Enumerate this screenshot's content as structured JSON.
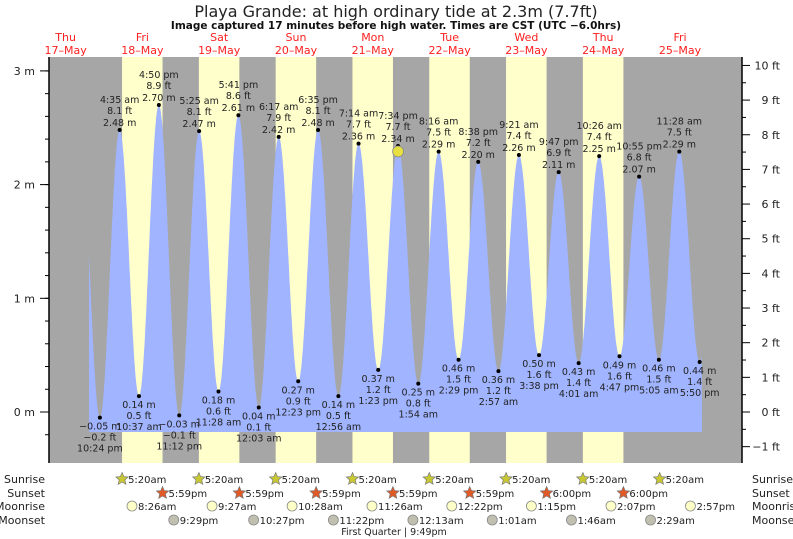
{
  "chart_data": {
    "type": "area",
    "title": "Playa Grande: at high  ordinary tide at 2.3m (7.7ft)",
    "subtitle": "Image captured 17 minutes before high water. Times are CST (UTC −6.0hrs)",
    "colors": {
      "night": "#a6a6a6",
      "day": "#ffffcc",
      "tide": "#a0b4ff",
      "day_label": "#ff2020",
      "sunrise": "#c8c832",
      "sunset": "#e05a28",
      "moonrise": "#ffffc8",
      "moonset": "#c0bfb0",
      "current": "#e8e040"
    },
    "days": [
      {
        "dow": "Thu",
        "date": "17–May",
        "day": 17
      },
      {
        "dow": "Fri",
        "date": "18–May",
        "day": 18
      },
      {
        "dow": "Sat",
        "date": "19–May",
        "day": 19
      },
      {
        "dow": "Sun",
        "date": "20–May",
        "day": 20
      },
      {
        "dow": "Mon",
        "date": "21–May",
        "day": 21
      },
      {
        "dow": "Tue",
        "date": "22–May",
        "day": 22
      },
      {
        "dow": "Wed",
        "date": "23–May",
        "day": 23
      },
      {
        "dow": "Thu",
        "date": "24–May",
        "day": 24
      },
      {
        "dow": "Fri",
        "date": "25–May",
        "day": 25
      }
    ],
    "y_left": {
      "unit": "m",
      "ticks": [
        "3 m",
        "2 m",
        "1 m",
        "0 m"
      ],
      "values": [
        3,
        2,
        1,
        0
      ],
      "ylim": [
        -0.35,
        3.13
      ]
    },
    "y_right": {
      "unit": "ft",
      "ticks": [
        "10 ft",
        "9 ft",
        "8 ft",
        "7 ft",
        "6 ft",
        "5 ft",
        "4 ft",
        "3 ft",
        "2 ft",
        "1 ft",
        "0 ft",
        "−1 ft"
      ],
      "values": [
        10,
        9,
        8,
        7,
        6,
        5,
        4,
        3,
        2,
        1,
        0,
        -1
      ]
    },
    "extremes": [
      {
        "day": 17,
        "time": "10:24 pm",
        "ft": "−0.2 ft",
        "m": "−0.05 m",
        "value": -0.05,
        "type": "low"
      },
      {
        "day": 18,
        "time": "4:35 am",
        "ft": "8.1 ft",
        "m": "2.48 m",
        "value": 2.48,
        "type": "high"
      },
      {
        "day": 18,
        "time": "10:37 am",
        "ft": "0.5 ft",
        "m": "0.14 m",
        "value": 0.14,
        "type": "low"
      },
      {
        "day": 18,
        "time": "4:50 pm",
        "ft": "8.9 ft",
        "m": "2.70 m",
        "value": 2.7,
        "type": "high"
      },
      {
        "day": 18,
        "time": "11:12 pm",
        "ft": "−0.1 ft",
        "m": "−0.03 m",
        "value": -0.03,
        "type": "low"
      },
      {
        "day": 19,
        "time": "5:25 am",
        "ft": "8.1 ft",
        "m": "2.47 m",
        "value": 2.47,
        "type": "high"
      },
      {
        "day": 19,
        "time": "11:28 am",
        "ft": "0.6 ft",
        "m": "0.18 m",
        "value": 0.18,
        "type": "low"
      },
      {
        "day": 19,
        "time": "5:41 pm",
        "ft": "8.6 ft",
        "m": "2.61 m",
        "value": 2.61,
        "type": "high"
      },
      {
        "day": 20,
        "time": "12:03 am",
        "ft": "0.1 ft",
        "m": "0.04 m",
        "value": 0.04,
        "type": "low"
      },
      {
        "day": 20,
        "time": "6:17 am",
        "ft": "7.9 ft",
        "m": "2.42 m",
        "value": 2.42,
        "type": "high"
      },
      {
        "day": 20,
        "time": "12:23 pm",
        "ft": "0.9 ft",
        "m": "0.27 m",
        "value": 0.27,
        "type": "low"
      },
      {
        "day": 20,
        "time": "6:35 pm",
        "ft": "8.1 ft",
        "m": "2.48 m",
        "value": 2.48,
        "type": "high"
      },
      {
        "day": 21,
        "time": "12:56 am",
        "ft": "0.5 ft",
        "m": "0.14 m",
        "value": 0.14,
        "type": "low"
      },
      {
        "day": 21,
        "time": "7:14 am",
        "ft": "7.7 ft",
        "m": "2.36 m",
        "value": 2.36,
        "type": "high"
      },
      {
        "day": 21,
        "time": "1:23 pm",
        "ft": "1.2 ft",
        "m": "0.37 m",
        "value": 0.37,
        "type": "low"
      },
      {
        "day": 21,
        "time": "7:34 pm",
        "ft": "7.7 ft",
        "m": "2.34 m",
        "value": 2.34,
        "type": "high"
      },
      {
        "day": 22,
        "time": "1:54 am",
        "ft": "0.8 ft",
        "m": "0.25 m",
        "value": 0.25,
        "type": "low"
      },
      {
        "day": 22,
        "time": "8:16 am",
        "ft": "7.5 ft",
        "m": "2.29 m",
        "value": 2.29,
        "type": "high"
      },
      {
        "day": 22,
        "time": "2:29 pm",
        "ft": "1.5 ft",
        "m": "0.46 m",
        "value": 0.46,
        "type": "low"
      },
      {
        "day": 22,
        "time": "8:38 pm",
        "ft": "7.2 ft",
        "m": "2.20 m",
        "value": 2.2,
        "type": "high"
      },
      {
        "day": 23,
        "time": "2:57 am",
        "ft": "1.2 ft",
        "m": "0.36 m",
        "value": 0.36,
        "type": "low"
      },
      {
        "day": 23,
        "time": "9:21 am",
        "ft": "7.4 ft",
        "m": "2.26 m",
        "value": 2.26,
        "type": "high"
      },
      {
        "day": 23,
        "time": "3:38 pm",
        "ft": "1.6 ft",
        "m": "0.50 m",
        "value": 0.5,
        "type": "low"
      },
      {
        "day": 23,
        "time": "9:47 pm",
        "ft": "6.9 ft",
        "m": "2.11 m",
        "value": 2.11,
        "type": "high"
      },
      {
        "day": 24,
        "time": "4:01 am",
        "ft": "1.4 ft",
        "m": "0.43 m",
        "value": 0.43,
        "type": "low"
      },
      {
        "day": 24,
        "time": "10:26 am",
        "ft": "7.4 ft",
        "m": "2.25 m",
        "value": 2.25,
        "type": "high"
      },
      {
        "day": 24,
        "time": "4:47 pm",
        "ft": "1.6 ft",
        "m": "0.49 m",
        "value": 0.49,
        "type": "low"
      },
      {
        "day": 24,
        "time": "10:55 pm",
        "ft": "6.8 ft",
        "m": "2.07 m",
        "value": 2.07,
        "type": "high"
      },
      {
        "day": 25,
        "time": "5:05 am",
        "ft": "1.5 ft",
        "m": "0.46 m",
        "value": 0.46,
        "type": "low"
      },
      {
        "day": 25,
        "time": "11:28 am",
        "ft": "7.5 ft",
        "m": "2.29 m",
        "value": 2.29,
        "type": "high"
      },
      {
        "day": 25,
        "time": "5:50 pm",
        "ft": "1.4 ft",
        "m": "0.44 m",
        "value": 0.44,
        "type": "low"
      }
    ],
    "current": {
      "day": 21,
      "time": "7:17 pm",
      "value": 2.3
    },
    "rows": {
      "labels": {
        "sunrise": "Sunrise",
        "sunset": "Sunset",
        "moonrise": "Moonrise",
        "moonset": "Moonset"
      },
      "sunrise": [
        {
          "day": 18,
          "t": "5:20am"
        },
        {
          "day": 19,
          "t": "5:20am"
        },
        {
          "day": 20,
          "t": "5:20am"
        },
        {
          "day": 21,
          "t": "5:20am"
        },
        {
          "day": 22,
          "t": "5:20am"
        },
        {
          "day": 23,
          "t": "5:20am"
        },
        {
          "day": 24,
          "t": "5:20am"
        },
        {
          "day": 25,
          "t": "5:20am"
        }
      ],
      "sunset": [
        {
          "day": 18,
          "t": "5:59pm"
        },
        {
          "day": 19,
          "t": "5:59pm"
        },
        {
          "day": 20,
          "t": "5:59pm"
        },
        {
          "day": 21,
          "t": "5:59pm"
        },
        {
          "day": 22,
          "t": "5:59pm"
        },
        {
          "day": 23,
          "t": "6:00pm"
        },
        {
          "day": 24,
          "t": "6:00pm"
        }
      ],
      "moonrise": [
        {
          "day": 18,
          "t": "8:26am"
        },
        {
          "day": 19,
          "t": "9:27am"
        },
        {
          "day": 20,
          "t": "10:28am"
        },
        {
          "day": 21,
          "t": "11:26am"
        },
        {
          "day": 22,
          "t": "12:22pm"
        },
        {
          "day": 23,
          "t": "1:15pm"
        },
        {
          "day": 24,
          "t": "2:07pm"
        },
        {
          "day": 25,
          "t": "2:57pm"
        }
      ],
      "moonset": [
        {
          "day": 18,
          "t": "9:29pm"
        },
        {
          "day": 19,
          "t": "10:27pm"
        },
        {
          "day": 20,
          "t": "11:22pm"
        },
        {
          "day": 22,
          "t": "12:13am"
        },
        {
          "day": 23,
          "t": "1:01am"
        },
        {
          "day": 24,
          "t": "1:46am"
        },
        {
          "day": 25,
          "t": "2:29am"
        }
      ]
    },
    "moon_phase": {
      "label": "First Quarter | 9:49pm",
      "day": 21,
      "t": "9:49pm"
    }
  }
}
